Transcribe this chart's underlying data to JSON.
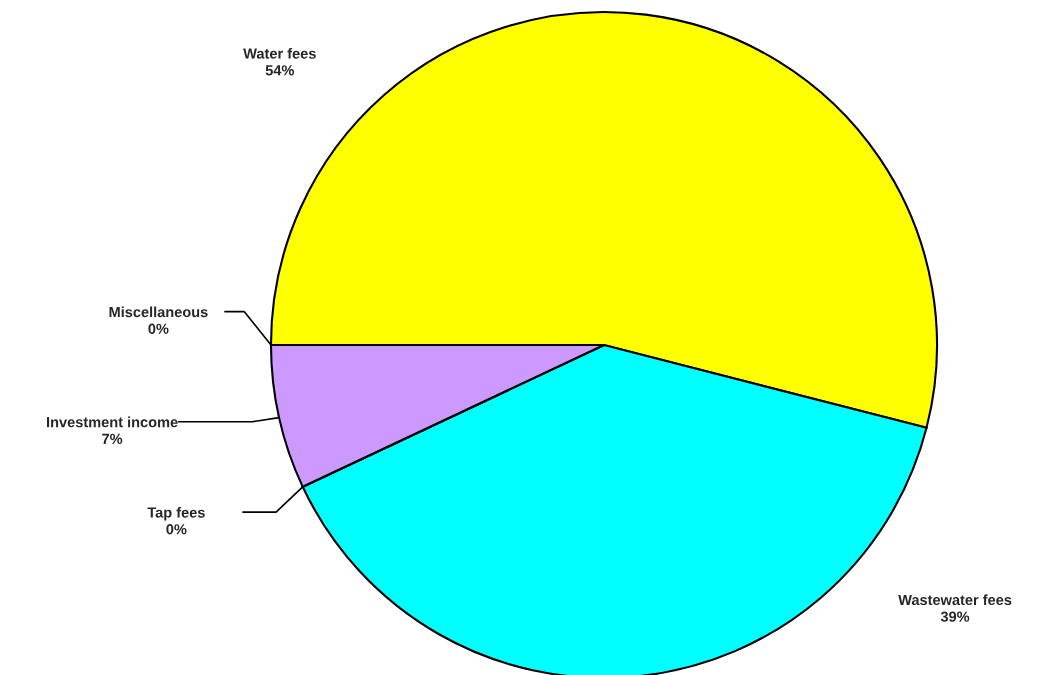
{
  "chart_data": {
    "type": "pie",
    "categories": [
      "Water fees",
      "Wastewater fees",
      "Tap fees",
      "Investment income",
      "Miscellaneous"
    ],
    "values": [
      54,
      39,
      0,
      7,
      0
    ],
    "colors": [
      "#ffff00",
      "#00ffff",
      "#ffffff",
      "#cc99ff",
      "#ffffff"
    ],
    "value_labels": [
      "54%",
      "39%",
      "0%",
      "7%",
      "0%"
    ],
    "legend": false
  }
}
